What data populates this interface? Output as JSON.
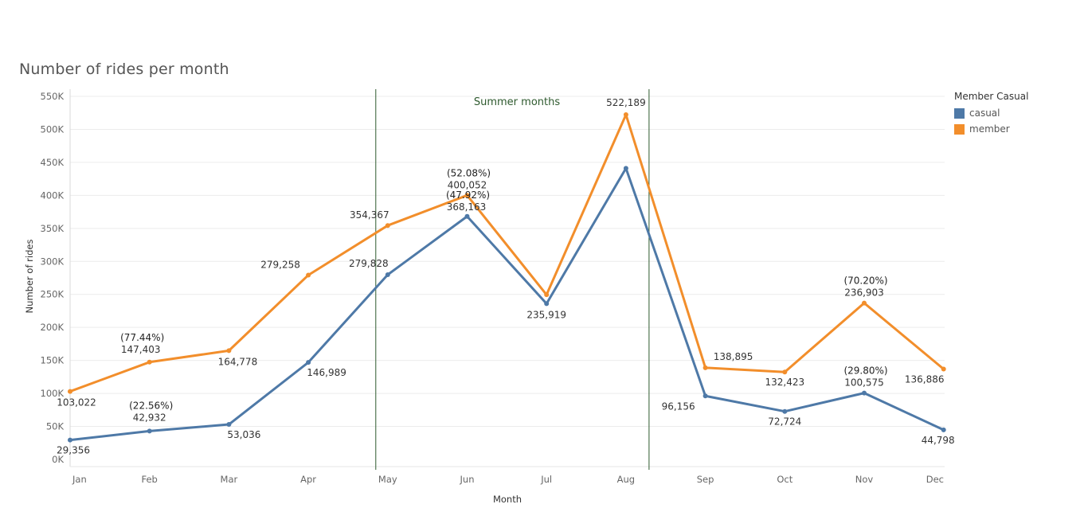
{
  "title": "Number of rides per month",
  "legend": {
    "title": "Member Casual",
    "items": [
      {
        "label": "casual",
        "color": "#4e79a7"
      },
      {
        "label": "member",
        "color": "#f28e2b"
      }
    ]
  },
  "annotation": {
    "text": "Summer  months",
    "start": "May",
    "end": "Aug",
    "color": "#2e5a2e"
  },
  "chart_data": {
    "type": "line",
    "xlabel": "Month",
    "ylabel": "Number of rides",
    "categories": [
      "Jan",
      "Feb",
      "Mar",
      "Apr",
      "May",
      "Jun",
      "Jul",
      "Aug",
      "Sep",
      "Oct",
      "Nov",
      "Dec"
    ],
    "ylim": [
      0,
      550000
    ],
    "yticks": [
      0,
      50000,
      100000,
      150000,
      200000,
      250000,
      300000,
      350000,
      400000,
      450000,
      500000,
      550000
    ],
    "ytick_labels": [
      "0K",
      "50K",
      "100K",
      "150K",
      "200K",
      "250K",
      "300K",
      "350K",
      "400K",
      "450K",
      "500K",
      "550K"
    ],
    "grid": true,
    "legend_position": "top-right",
    "series": [
      {
        "name": "casual",
        "color": "#4e79a7",
        "values": [
          29356,
          42932,
          53036,
          146989,
          279828,
          368163,
          235919,
          441000,
          96156,
          72724,
          100575,
          44798
        ],
        "labels": [
          "29,356",
          "42,932",
          "53,036",
          "146,989",
          "279,828",
          "368,163",
          "235,919",
          "",
          "96,156",
          "72,724",
          "100,575",
          "44,798"
        ],
        "percents": [
          "",
          "(22.56%)",
          "",
          "",
          "",
          "(47.92%)",
          "",
          "",
          "",
          "",
          "(29.80%)",
          ""
        ]
      },
      {
        "name": "member",
        "color": "#f28e2b",
        "values": [
          103022,
          147403,
          164778,
          279258,
          354367,
          400052,
          249500,
          522189,
          138895,
          132423,
          236903,
          136886
        ],
        "labels": [
          "103,022",
          "147,403",
          "164,778",
          "279,258",
          "354,367",
          "400,052",
          "",
          "522,189",
          "138,895",
          "132,423",
          "236,903",
          "136,886"
        ],
        "percents": [
          "",
          "(77.44%)",
          "",
          "",
          "",
          "(52.08%)",
          "",
          "",
          "",
          "",
          "(70.20%)",
          ""
        ]
      }
    ]
  }
}
